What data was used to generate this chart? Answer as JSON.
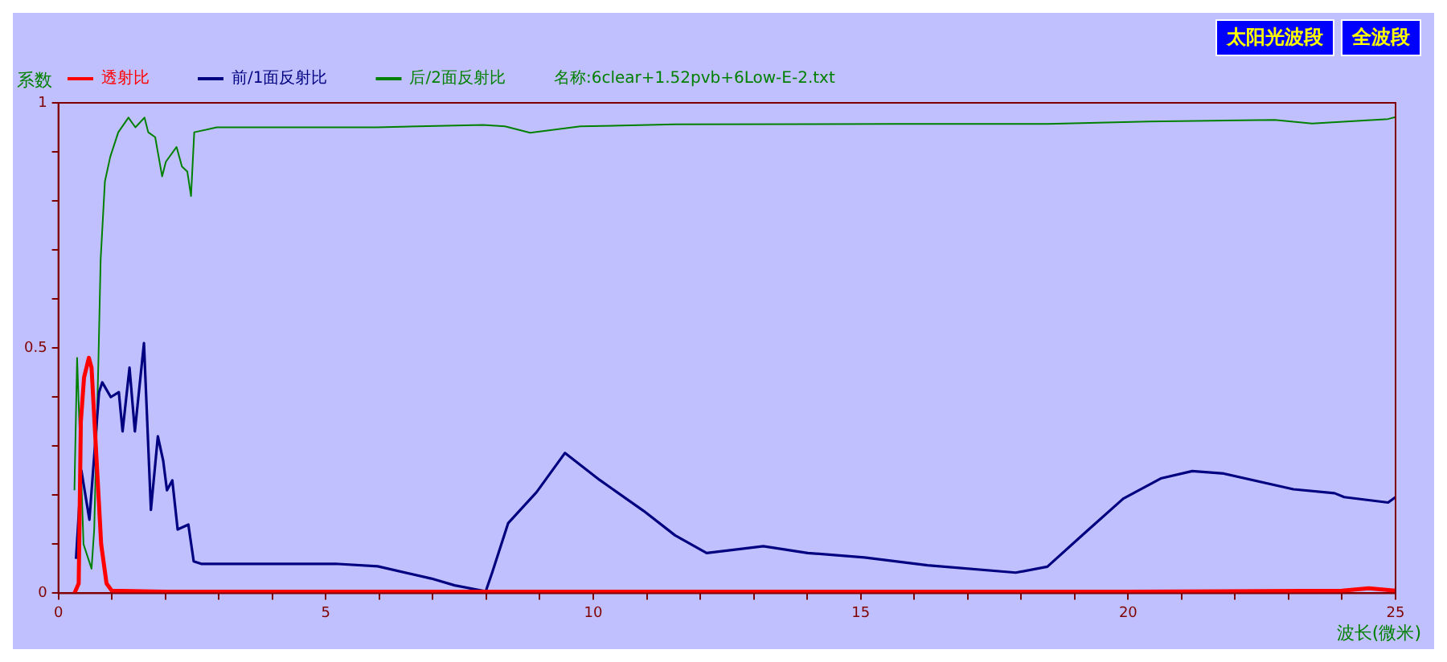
{
  "chart_data": {
    "type": "line",
    "subtitle": "名称:6clear+1.52pvb+6Low-E-2.txt",
    "xlabel": "波长(微米)",
    "ylabel": "系数",
    "annotations": [
      "太阳光波段",
      "全波段"
    ],
    "legend": "top left",
    "marker": "none",
    "line_style": "solid",
    "grid": false,
    "xlim": [
      0,
      25
    ],
    "ylim": [
      0,
      1
    ],
    "xticks": [
      0,
      {
        "value": 1,
        "label": null
      },
      {
        "value": 2,
        "label": null
      },
      {
        "value": 3,
        "label": null
      },
      {
        "value": 4,
        "label": null
      },
      5,
      {
        "value": 6,
        "label": null
      },
      {
        "value": 7,
        "label": null
      },
      {
        "value": 8,
        "label": null
      },
      {
        "value": 9,
        "label": null
      },
      10,
      {
        "value": 11,
        "label": null
      },
      {
        "value": 12,
        "label": null
      },
      {
        "value": 13,
        "label": null
      },
      {
        "value": 14,
        "label": null
      },
      15,
      {
        "value": 16,
        "label": null
      },
      {
        "value": 17,
        "label": null
      },
      {
        "value": 18,
        "label": null
      },
      {
        "value": 19,
        "label": null
      },
      20,
      {
        "value": 21,
        "label": null
      },
      {
        "value": 22,
        "label": null
      },
      {
        "value": 23,
        "label": null
      },
      {
        "value": 24,
        "label": null
      },
      25
    ],
    "yticks": [
      0,
      {
        "value": 0.1,
        "label": null
      },
      {
        "value": 0.2,
        "label": null
      },
      {
        "value": 0.3,
        "label": null
      },
      {
        "value": 0.4,
        "label": null
      },
      0.5,
      {
        "value": 0.6,
        "label": null
      },
      {
        "value": 0.7,
        "label": null
      },
      {
        "value": 0.8,
        "label": null
      },
      {
        "value": 0.9,
        "label": null
      },
      1
    ],
    "series": [
      {
        "name": "透射比",
        "color": "#ff0000",
        "x": [
          0.3,
          0.38,
          0.42,
          0.48,
          0.57,
          0.62,
          0.7,
          0.8,
          0.9,
          1.0,
          2,
          5,
          10,
          15,
          20,
          24,
          24.5,
          25
        ],
        "values": [
          0,
          0.02,
          0.35,
          0.44,
          0.48,
          0.46,
          0.3,
          0.1,
          0.02,
          0.005,
          0.003,
          0.003,
          0.003,
          0.003,
          0.003,
          0.005,
          0.01,
          0.005
        ]
      },
      {
        "name": "前/1面反射比",
        "color": "#000080",
        "x": [
          0.33,
          0.43,
          0.58,
          0.76,
          0.82,
          0.98,
          1.13,
          1.2,
          1.33,
          1.43,
          1.6,
          1.73,
          1.86,
          1.96,
          2.03,
          2.13,
          2.23,
          2.43,
          2.53,
          2.67,
          3.17,
          4.47,
          5.18,
          5.97,
          6.97,
          7.41,
          7.99,
          8.11,
          8.41,
          8.94,
          9.47,
          10.12,
          10.94,
          11.53,
          12.12,
          13.18,
          14.01,
          15.07,
          16.25,
          17.9,
          18.49,
          19.2,
          19.91,
          20.61,
          21.2,
          21.79,
          23.09,
          23.86,
          24.04,
          24.86,
          25
        ],
        "values": [
          0.07,
          0.25,
          0.15,
          0.41,
          0.43,
          0.4,
          0.41,
          0.33,
          0.46,
          0.33,
          0.51,
          0.17,
          0.32,
          0.27,
          0.21,
          0.23,
          0.13,
          0.14,
          0.065,
          0.06,
          0.06,
          0.06,
          0.06,
          0.055,
          0.03,
          0.016,
          0.004,
          0.042,
          0.143,
          0.206,
          0.286,
          0.231,
          0.168,
          0.118,
          0.082,
          0.096,
          0.082,
          0.073,
          0.057,
          0.042,
          0.054,
          0.124,
          0.193,
          0.234,
          0.249,
          0.244,
          0.212,
          0.204,
          0.196,
          0.185,
          0.196
        ]
      },
      {
        "name": "后/2面反射比",
        "color": "#008000",
        "x": [
          0.3,
          0.35,
          0.47,
          0.62,
          0.67,
          0.75,
          0.79,
          0.87,
          0.97,
          1.12,
          1.31,
          1.44,
          1.61,
          1.68,
          1.81,
          1.94,
          2.01,
          2.21,
          2.31,
          2.41,
          2.48,
          2.54,
          2.96,
          3.95,
          5.95,
          7.94,
          8.35,
          8.82,
          9.76,
          11.53,
          15.66,
          18.49,
          20.38,
          22.74,
          23.44,
          24.86,
          25
        ],
        "values": [
          0.21,
          0.48,
          0.1,
          0.05,
          0.13,
          0.48,
          0.68,
          0.84,
          0.89,
          0.94,
          0.97,
          0.95,
          0.97,
          0.94,
          0.93,
          0.85,
          0.88,
          0.91,
          0.87,
          0.86,
          0.81,
          0.94,
          0.95,
          0.95,
          0.95,
          0.955,
          0.952,
          0.939,
          0.952,
          0.956,
          0.957,
          0.957,
          0.962,
          0.965,
          0.958,
          0.967,
          0.971
        ]
      }
    ]
  }
}
